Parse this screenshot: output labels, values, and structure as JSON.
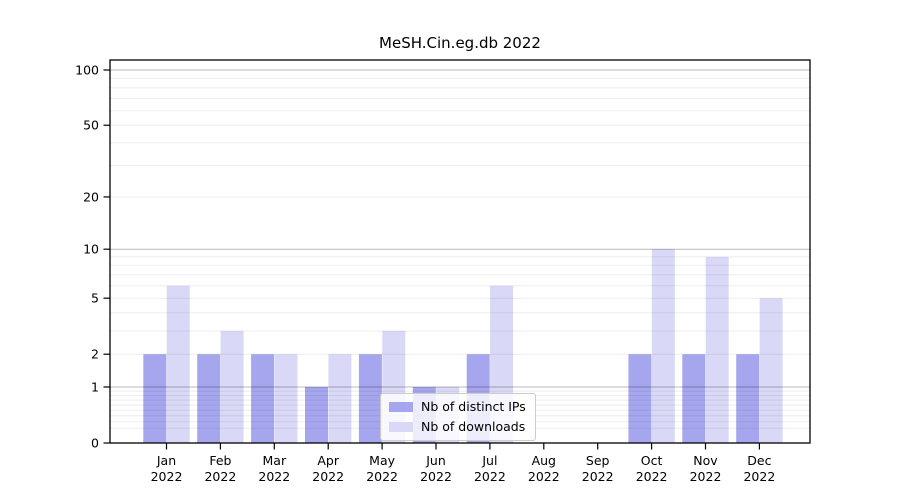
{
  "chart_data": {
    "type": "bar",
    "title": "MeSH.Cin.eg.db 2022",
    "categories": [
      "Jan 2022",
      "Feb 2022",
      "Mar 2022",
      "Apr 2022",
      "May 2022",
      "Jun 2022",
      "Jul 2022",
      "Aug 2022",
      "Sep 2022",
      "Oct 2022",
      "Nov 2022",
      "Dec 2022"
    ],
    "series": [
      {
        "name": "Nb of distinct IPs",
        "color": "#a6a6ee",
        "values": [
          2,
          2,
          2,
          1,
          2,
          1,
          2,
          0,
          0,
          2,
          2,
          2
        ]
      },
      {
        "name": "Nb of downloads",
        "color": "#d9d9f7",
        "values": [
          6,
          3,
          2,
          2,
          3,
          1,
          6,
          0,
          0,
          10,
          9,
          5
        ]
      }
    ],
    "yscale": "log1p",
    "y_ticks": [
      0,
      1,
      2,
      5,
      10,
      20,
      50,
      100
    ],
    "ylim": [
      0,
      113
    ],
    "xlabel": "",
    "ylabel": "",
    "grid": "horizontal, log minor and major, drawn over bars",
    "legend_position": "inside lower center"
  }
}
